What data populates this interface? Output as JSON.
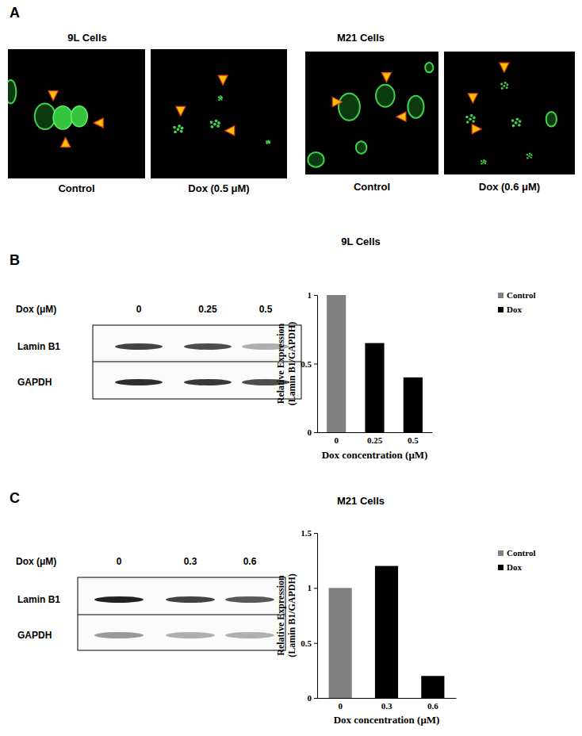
{
  "figure": {
    "panels": [
      {
        "label": "A",
        "groups": [
          {
            "title": "9L Cells",
            "images": [
              {
                "caption": "Control"
              },
              {
                "caption": "Dox (0.5 μM)"
              }
            ]
          },
          {
            "title": "M21 Cells",
            "images": [
              {
                "caption": "Control"
              },
              {
                "caption": "Dox (0.6 μM)"
              }
            ]
          }
        ]
      },
      {
        "label": "B",
        "blot": {
          "header": "Dox (μM)",
          "lanes": [
            "0",
            "0.25",
            "0.5"
          ],
          "rows": [
            "Lamin B1",
            "GAPDH"
          ]
        }
      },
      {
        "label": "C",
        "blot": {
          "header": "Dox (μM)",
          "lanes": [
            "0",
            "0.3",
            "0.6"
          ],
          "rows": [
            "Lamin B1",
            "GAPDH"
          ]
        }
      }
    ]
  },
  "chart_data": [
    {
      "type": "bar",
      "title": "9L Cells",
      "x_label": "Dox concentration (μM)",
      "y_label": [
        "Relative Expression",
        "(Lamin B1/GAPDH)"
      ],
      "categories": [
        "0",
        "0.25",
        "0.5"
      ],
      "series": [
        {
          "name": "Control",
          "color": "#808080",
          "values": [
            1,
            null,
            null
          ]
        },
        {
          "name": "Dox",
          "color": "#000000",
          "values": [
            null,
            0.65,
            0.4
          ]
        }
      ],
      "ylim": [
        0,
        1
      ],
      "yticks": [
        0,
        0.5,
        1
      ],
      "legend": "upper right"
    },
    {
      "type": "bar",
      "title": "M21 Cells",
      "x_label": "Dox concentration (μM)",
      "y_label": [
        "Relative Expression",
        "(Lamin B1/GAPDH)"
      ],
      "categories": [
        "0",
        "0.3",
        "0.6"
      ],
      "series": [
        {
          "name": "Control",
          "color": "#808080",
          "values": [
            1,
            null,
            null
          ]
        },
        {
          "name": "Dox",
          "color": "#000000",
          "values": [
            null,
            1.2,
            0.2
          ]
        }
      ],
      "ylim": [
        0,
        1.5
      ],
      "yticks": [
        0,
        0.5,
        1,
        1.5
      ],
      "legend": "upper right"
    }
  ]
}
